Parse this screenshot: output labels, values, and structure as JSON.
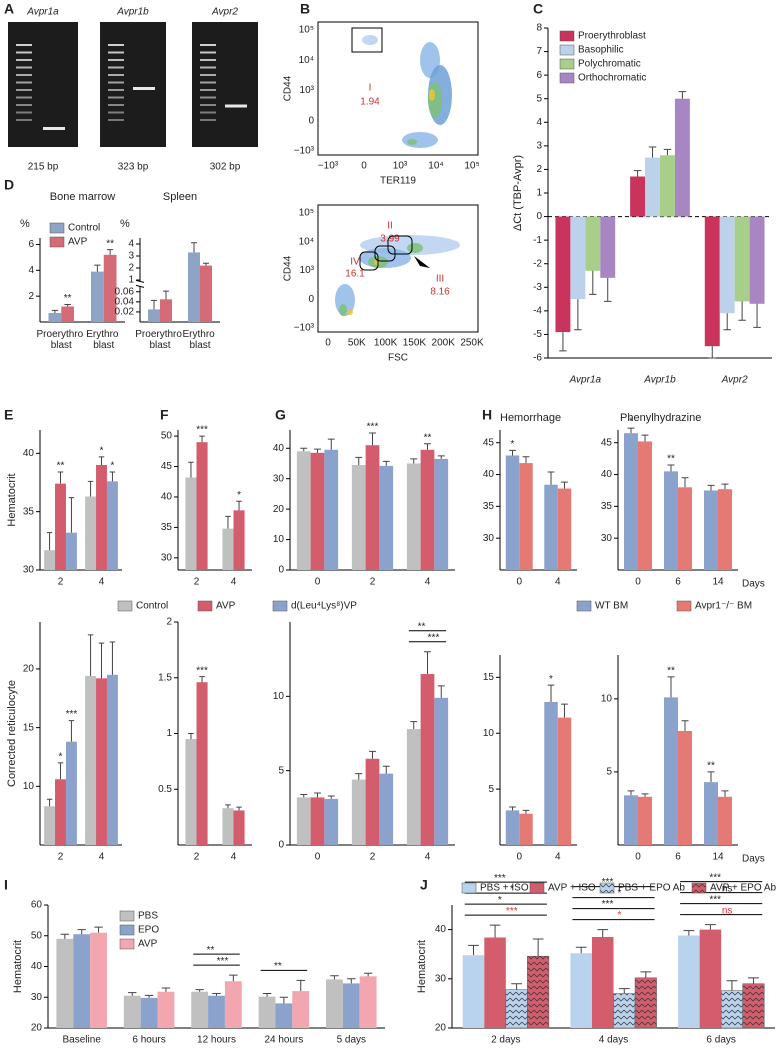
{
  "panel_labels": [
    "A",
    "B",
    "C",
    "D",
    "E",
    "F",
    "G",
    "H",
    "I",
    "J"
  ],
  "gels": [
    {
      "gene": "Avpr1a",
      "size": "215 bp"
    },
    {
      "gene": "Avpr1b",
      "size": "323 bp"
    },
    {
      "gene": "Avpr2",
      "size": "302 bp"
    }
  ],
  "flow": [
    {
      "ylabel": "CD44",
      "xlabel": "TER119",
      "yticks": [
        "10⁵",
        "10⁴",
        "10³",
        "0",
        "−10³"
      ],
      "xticks": [
        "−10³",
        "0",
        "10³",
        "10⁴",
        "10⁵"
      ],
      "gates": [
        {
          "name": "I",
          "value": 1.94
        }
      ]
    },
    {
      "ylabel": "CD44",
      "xlabel": "FSC",
      "yticks": [
        "10⁵",
        "10⁴",
        "10³",
        "0",
        "−10³"
      ],
      "xticks": [
        "0",
        "50K",
        "100K",
        "150K",
        "200K",
        "250K"
      ],
      "gates": [
        {
          "name": "II",
          "value": 3.99
        },
        {
          "name": "IV",
          "value": 16.1
        },
        {
          "name": "III",
          "value": 8.16
        }
      ]
    }
  ],
  "chart_data": [
    {
      "type": "bar",
      "ylabel": "ΔCt (TBP-Avpr)",
      "categories": [
        "Avpr1a",
        "Avpr1b",
        "Avpr2"
      ],
      "ylim": [
        -6,
        8
      ],
      "yticks": [
        -6,
        -5,
        -4,
        -3,
        -2,
        -1,
        0,
        1,
        2,
        3,
        4,
        5,
        6,
        7,
        8
      ],
      "zero_line": true,
      "legend": "top-left",
      "series": [
        {
          "name": "Proerythroblast",
          "color": "#c9335c",
          "values": [
            -4.9,
            1.7,
            -5.5
          ],
          "errors": [
            0.8,
            0.25,
            0.5
          ]
        },
        {
          "name": "Basophilic",
          "color": "#bcd2ea",
          "values": [
            -3.5,
            2.5,
            -4.1
          ],
          "errors": [
            1.3,
            0.45,
            0.7
          ]
        },
        {
          "name": "Polychromatic",
          "color": "#a7cf8a",
          "values": [
            -2.3,
            2.6,
            -3.6
          ],
          "errors": [
            1.0,
            0.25,
            0.8
          ]
        },
        {
          "name": "Orthochromatic",
          "color": "#a886c4",
          "values": [
            -2.6,
            5.0,
            -3.7
          ],
          "errors": [
            1.0,
            0.3,
            1.0
          ]
        }
      ]
    },
    {
      "type": "bar",
      "title": "Bone marrow",
      "ylabel": "%",
      "categories": [
        "Proerythro blast",
        "Erythro blast"
      ],
      "ylim": [
        0,
        6.5
      ],
      "yticks": [
        2,
        4,
        6
      ],
      "legend": "top-left",
      "series": [
        {
          "name": "Control",
          "color": "#8fa3c5",
          "values": [
            0.7,
            3.9
          ],
          "errors": [
            0.2,
            0.5
          ]
        },
        {
          "name": "AVP",
          "color": "#d66b78",
          "values": [
            1.2,
            5.2
          ],
          "errors": [
            0.15,
            0.4
          ],
          "significance": [
            "**",
            "**"
          ]
        }
      ]
    },
    {
      "type": "bar",
      "title": "Spleen",
      "ylabel": "%",
      "categories": [
        "Proerythro blast",
        "Erythro blast"
      ],
      "ylim": [
        0,
        4.5
      ],
      "ybreak": [
        0.07,
        1
      ],
      "yticks": [
        0.02,
        0.04,
        0.06,
        1,
        2,
        3,
        4
      ],
      "series": [
        {
          "color": "#8fa3c5",
          "values": [
            0.025,
            3.3
          ],
          "errors": [
            0.018,
            0.8
          ]
        },
        {
          "color": "#d66b78",
          "values": [
            0.045,
            2.2
          ],
          "errors": [
            0.03,
            0.2
          ]
        }
      ]
    },
    {
      "type": "bar",
      "ylabel": "Hematocrit",
      "categories": [
        "2",
        "4"
      ],
      "ylim": [
        30,
        42
      ],
      "yticks": [
        30,
        35,
        40
      ],
      "series": [
        {
          "color": "#c0c0c0",
          "values": [
            31.7,
            36.3
          ],
          "errors": [
            1.5,
            1.3
          ]
        },
        {
          "color": "#d45d6d",
          "values": [
            37.4,
            39.0
          ],
          "errors": [
            1.0,
            0.7
          ],
          "significance": [
            "**",
            "*"
          ]
        },
        {
          "color": "#8ba3cc",
          "values": [
            33.2,
            37.6
          ],
          "errors": [
            3.0,
            0.8
          ],
          "significance": [
            null,
            "*"
          ]
        }
      ]
    },
    {
      "type": "bar",
      "categories": [
        "2",
        "4"
      ],
      "ylim": [
        28,
        51
      ],
      "yticks": [
        30,
        35,
        40,
        45,
        50
      ],
      "series": [
        {
          "color": "#c0c0c0",
          "values": [
            43.2,
            34.8
          ],
          "errors": [
            2.5,
            2.0
          ]
        },
        {
          "color": "#d45d6d",
          "values": [
            49.0,
            37.8
          ],
          "errors": [
            1.0,
            1.5
          ],
          "significance": [
            "***",
            "*"
          ]
        }
      ]
    },
    {
      "type": "bar",
      "categories": [
        "0",
        "2",
        "4"
      ],
      "ylim": [
        0,
        46
      ],
      "yticks": [
        0,
        10,
        20,
        30,
        40
      ],
      "series": [
        {
          "color": "#c0c0c0",
          "values": [
            39.0,
            34.5,
            35.0
          ],
          "errors": [
            1.0,
            2.5,
            1.5
          ]
        },
        {
          "color": "#d45d6d",
          "values": [
            38.5,
            41.0,
            39.5
          ],
          "errors": [
            1.2,
            4.0,
            2.0
          ],
          "significance": [
            null,
            "***",
            "**"
          ]
        },
        {
          "color": "#8ba3cc",
          "values": [
            39.5,
            34.2,
            36.5
          ],
          "errors": [
            3.5,
            1.5,
            1.0
          ]
        }
      ]
    },
    {
      "type": "bar",
      "title": "Hemorrhage",
      "categories": [
        "0",
        "4"
      ],
      "ylim": [
        25,
        47
      ],
      "yticks": [
        30,
        35,
        40,
        45
      ],
      "series": [
        {
          "color": "#8ba3cc",
          "values": [
            43.0,
            38.4
          ],
          "errors": [
            0.8,
            2.0
          ],
          "significance": [
            "*",
            null
          ]
        },
        {
          "color": "#e57a74",
          "values": [
            41.8,
            37.8
          ],
          "errors": [
            1.0,
            1.0
          ]
        }
      ]
    },
    {
      "type": "bar",
      "title": "Phenylhydrazine",
      "xlabel": "Days",
      "categories": [
        "0",
        "6",
        "14"
      ],
      "ylim": [
        25,
        47
      ],
      "yticks": [
        30,
        35,
        40,
        45
      ],
      "series": [
        {
          "color": "#8ba3cc",
          "values": [
            46.5,
            40.5,
            37.5
          ],
          "errors": [
            0.8,
            1.0,
            0.8
          ],
          "significance": [
            "*",
            "**",
            null
          ]
        },
        {
          "color": "#e57a74",
          "values": [
            45.2,
            38.0,
            37.7
          ],
          "errors": [
            1.0,
            1.5,
            0.8
          ]
        }
      ]
    },
    {
      "type": "bar",
      "ylabel": "Corrected reticulocyte",
      "categories": [
        "2",
        "4"
      ],
      "ylim": [
        5,
        24
      ],
      "yticks": [
        10,
        15,
        20
      ],
      "legend": "top",
      "series": [
        {
          "name": "Control",
          "color": "#c0c0c0",
          "values": [
            8.3,
            19.4
          ],
          "errors": [
            0.6,
            3.5
          ]
        },
        {
          "name": "AVP",
          "color": "#d45d6d",
          "values": [
            10.6,
            19.2
          ],
          "errors": [
            1.4,
            3.0
          ],
          "significance": [
            "*",
            null
          ]
        },
        {
          "name": "d(Leu⁴Lys⁸)VP",
          "color": "#8ba3cc",
          "values": [
            13.8,
            19.5
          ],
          "errors": [
            1.8,
            2.8
          ],
          "significance": [
            "***",
            null
          ]
        }
      ]
    },
    {
      "type": "bar",
      "categories": [
        "2",
        "4"
      ],
      "ylim": [
        0,
        2
      ],
      "yticks": [
        0.5,
        1,
        1.5,
        2
      ],
      "series": [
        {
          "color": "#c0c0c0",
          "values": [
            0.95,
            0.33
          ],
          "errors": [
            0.05,
            0.03
          ]
        },
        {
          "color": "#d45d6d",
          "values": [
            1.46,
            0.31
          ],
          "errors": [
            0.05,
            0.03
          ],
          "significance": [
            "***",
            null
          ]
        }
      ]
    },
    {
      "type": "bar",
      "categories": [
        "0",
        "2",
        "4"
      ],
      "ylim": [
        0,
        15
      ],
      "yticks": [
        0,
        5,
        10
      ],
      "comparisons": [
        null,
        null,
        [
          {
            "label": "**"
          },
          {
            "label": "***"
          }
        ]
      ],
      "series": [
        {
          "color": "#c0c0c0",
          "values": [
            3.2,
            4.4,
            7.8
          ],
          "errors": [
            0.2,
            0.4,
            0.5
          ]
        },
        {
          "color": "#d45d6d",
          "values": [
            3.2,
            5.8,
            11.5
          ],
          "errors": [
            0.3,
            0.5,
            1.5
          ]
        },
        {
          "color": "#8ba3cc",
          "values": [
            3.1,
            4.8,
            9.9
          ],
          "errors": [
            0.2,
            0.5,
            0.8
          ]
        }
      ]
    },
    {
      "type": "bar",
      "categories": [
        "0",
        "4"
      ],
      "ylim": [
        0,
        17
      ],
      "yticks": [
        5,
        10,
        15
      ],
      "legend": "top",
      "series": [
        {
          "name": "WT BM",
          "color": "#8ba3cc",
          "values": [
            3.1,
            12.8
          ],
          "errors": [
            0.3,
            1.5
          ],
          "significance": [
            null,
            "*"
          ]
        },
        {
          "name": "Avpr1⁻/⁻ BM",
          "color": "#e57a74",
          "values": [
            2.8,
            11.4
          ],
          "errors": [
            0.3,
            1.2
          ]
        }
      ]
    },
    {
      "type": "bar",
      "xlabel": "Days",
      "categories": [
        "0",
        "6",
        "14"
      ],
      "ylim": [
        0,
        13
      ],
      "yticks": [
        5,
        10
      ],
      "series": [
        {
          "color": "#8ba3cc",
          "values": [
            3.4,
            10.1,
            4.3
          ],
          "errors": [
            0.3,
            1.4,
            0.7
          ],
          "significance": [
            null,
            "**",
            "**"
          ]
        },
        {
          "color": "#e57a74",
          "values": [
            3.3,
            7.8,
            3.3
          ],
          "errors": [
            0.2,
            0.7,
            0.4
          ]
        }
      ]
    },
    {
      "type": "bar",
      "ylabel": "Hematocrit",
      "categories": [
        "Baseline",
        "6 hours",
        "12 hours",
        "24 hours",
        "5 days"
      ],
      "ylim": [
        20,
        60
      ],
      "yticks": [
        20,
        30,
        40,
        50,
        60
      ],
      "legend": "top-left",
      "comparisons": [
        null,
        null,
        [
          {
            "label": "**"
          },
          {
            "label": "***"
          }
        ],
        [
          {
            "label": "**"
          }
        ],
        null
      ],
      "series": [
        {
          "name": "PBS",
          "color": "#c0c0c0",
          "values": [
            49.0,
            30.5,
            31.8,
            30.2,
            35.8
          ],
          "errors": [
            1.5,
            1.0,
            0.7,
            1.0,
            1.2
          ]
        },
        {
          "name": "EPO",
          "color": "#8ba3cc",
          "values": [
            50.5,
            29.8,
            30.5,
            28.0,
            34.5
          ],
          "errors": [
            1.5,
            0.8,
            0.7,
            2.0,
            1.5
          ]
        },
        {
          "name": "AVP",
          "color": "#f2a6b0",
          "values": [
            51.0,
            31.8,
            35.2,
            32.0,
            36.8
          ],
          "errors": [
            1.8,
            1.2,
            2.0,
            3.5,
            1.0
          ]
        }
      ]
    },
    {
      "type": "bar",
      "ylabel": "Hematocrit",
      "categories": [
        "2 days",
        "4 days",
        "6 days"
      ],
      "ylim": [
        20,
        45
      ],
      "yticks": [
        20,
        30,
        40
      ],
      "legend": "top",
      "comparisons": [
        [
          {
            "label": "***"
          },
          {
            "label": "*"
          },
          {
            "label": "*"
          },
          {
            "label": "***",
            "color": "#e0303c"
          }
        ],
        [
          {
            "label": "***"
          },
          {
            "label": "*"
          },
          {
            "label": "***"
          },
          {
            "label": "*",
            "color": "#e0303c"
          }
        ],
        [
          {
            "label": "***"
          },
          {
            "label": "ns"
          },
          {
            "label": "***"
          },
          {
            "label": "ns",
            "color": "#e0303c"
          }
        ]
      ],
      "series": [
        {
          "name": "PBS + ISO",
          "color": "#b9d2ee",
          "values": [
            34.8,
            35.2,
            38.8
          ],
          "errors": [
            2.0,
            1.2,
            1.0
          ]
        },
        {
          "name": "AVP + ISO",
          "color": "#d45d6d",
          "values": [
            38.4,
            38.5,
            40.0
          ],
          "errors": [
            2.5,
            1.5,
            1.0
          ]
        },
        {
          "name": "PBS + EPO Ab",
          "color": "#b9d2ee",
          "hatch": true,
          "values": [
            27.8,
            27.0,
            27.6
          ],
          "errors": [
            1.2,
            1.0,
            2.0
          ]
        },
        {
          "name": "AVP + EPO Ab",
          "color": "#d45d6d",
          "hatch": true,
          "values": [
            34.6,
            30.2,
            29.0
          ],
          "errors": [
            3.5,
            1.2,
            1.2
          ]
        }
      ]
    }
  ]
}
